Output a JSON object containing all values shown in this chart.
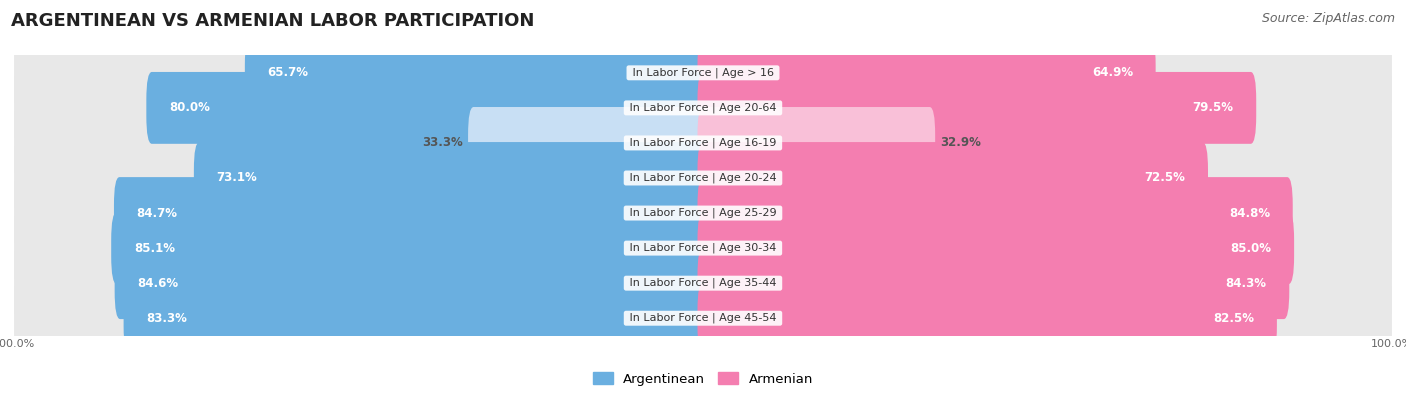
{
  "title": "ARGENTINEAN VS ARMENIAN LABOR PARTICIPATION",
  "source": "Source: ZipAtlas.com",
  "categories": [
    "In Labor Force | Age > 16",
    "In Labor Force | Age 20-64",
    "In Labor Force | Age 16-19",
    "In Labor Force | Age 20-24",
    "In Labor Force | Age 25-29",
    "In Labor Force | Age 30-34",
    "In Labor Force | Age 35-44",
    "In Labor Force | Age 45-54"
  ],
  "argentinean": [
    65.7,
    80.0,
    33.3,
    73.1,
    84.7,
    85.1,
    84.6,
    83.3
  ],
  "armenian": [
    64.9,
    79.5,
    32.9,
    72.5,
    84.8,
    85.0,
    84.3,
    82.5
  ],
  "argentinean_color": "#6aafe0",
  "armenian_color": "#f47eb0",
  "argentinean_color_light": "#c8dff4",
  "armenian_color_light": "#f9c0d8",
  "row_bg": "#e8e8e8",
  "bar_height": 0.6,
  "max_val": 100.0,
  "legend_label_arg": "Argentinean",
  "legend_label_arm": "Armenian",
  "title_fontsize": 13,
  "source_fontsize": 9,
  "label_fontsize": 8.5,
  "category_fontsize": 8,
  "axis_label_fontsize": 8,
  "light_threshold": 50.0
}
